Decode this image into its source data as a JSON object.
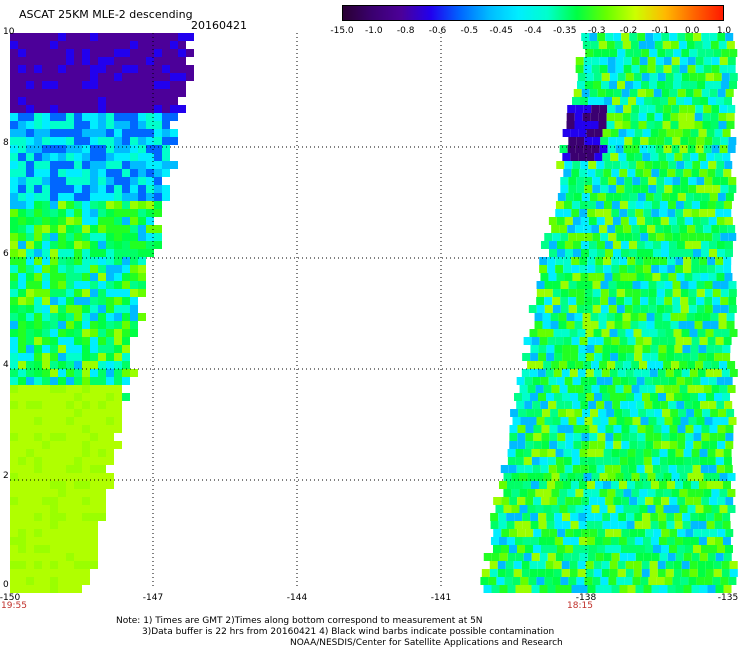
{
  "header": {
    "title": "ASCAT 25KM MLE-2 descending",
    "date": "20160421"
  },
  "colorbar": {
    "labels": [
      "-15.0",
      "-1.0",
      "-0.8",
      "-0.6",
      "-0.5",
      "-0.45",
      "-0.4",
      "-0.35",
      "-0.3",
      "-0.2",
      "-0.1",
      "0.0",
      "1.0"
    ],
    "colors": [
      "#2a0033",
      "#3b0070",
      "#4c0099",
      "#2200ee",
      "#0066ff",
      "#00bbff",
      "#00eeff",
      "#00ffcc",
      "#00ff44",
      "#66ff00",
      "#ccff00",
      "#ffbb00",
      "#ff6600",
      "#ff1a00"
    ]
  },
  "axes": {
    "y_ticks": [
      "10",
      "8",
      "6",
      "4",
      "2",
      "0"
    ],
    "x_ticks": [
      "-150",
      "-147",
      "-144",
      "-141",
      "-138",
      "-135"
    ],
    "times": [
      "19:55",
      "18:15"
    ]
  },
  "notes": {
    "line1": "Note: 1) Times are GMT 2)Times along bottom correspond to measurement at 5N",
    "line2": "3)Data buffer is 22 hrs from 20160421 4) Black wind barbs indicate possible contamination",
    "line3": "NOAA/NESDIS/Center for Satellite Applications and Research"
  }
}
